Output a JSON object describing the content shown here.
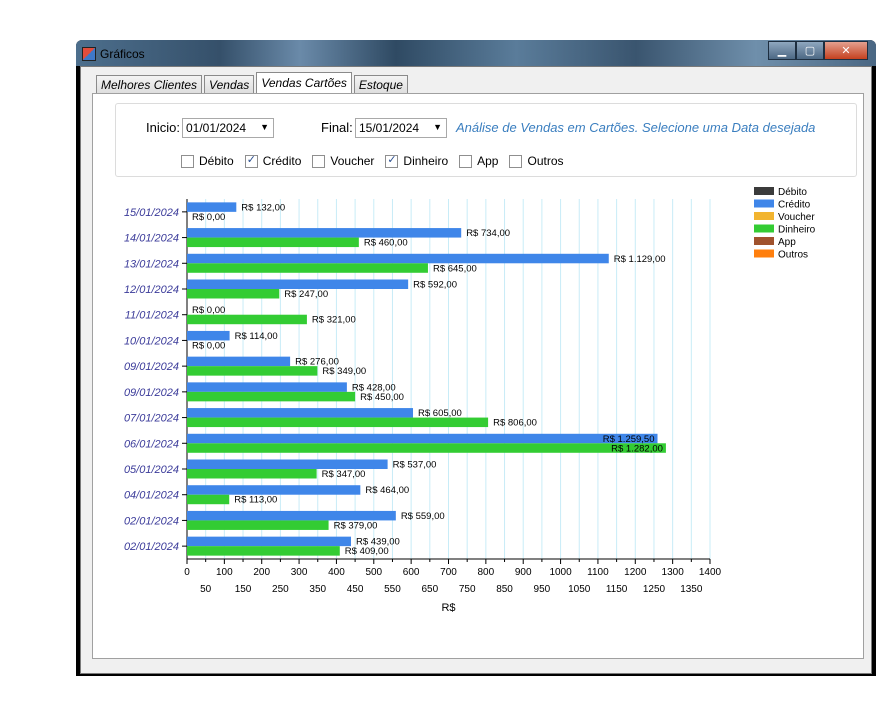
{
  "window": {
    "title": "Gráficos",
    "minimize": "▁",
    "maximize": "▢",
    "close": "✕"
  },
  "tabs": [
    {
      "label": "Melhores Clientes"
    },
    {
      "label": "Vendas"
    },
    {
      "label": "Vendas Cartões",
      "active": true
    },
    {
      "label": "Estoque"
    }
  ],
  "filters": {
    "inicio_label": "Inicio:",
    "inicio_value": "01/01/2024",
    "final_label": "Final:",
    "final_value": "15/01/2024",
    "hint": "Análise de Vendas em Cartões. Selecione uma Data desejada",
    "checkboxes": [
      {
        "label": "Débito",
        "checked": false
      },
      {
        "label": "Crédito",
        "checked": true
      },
      {
        "label": "Voucher",
        "checked": false
      },
      {
        "label": "Dinheiro",
        "checked": true
      },
      {
        "label": "App",
        "checked": false
      },
      {
        "label": "Outros",
        "checked": false
      }
    ]
  },
  "colors": {
    "Débito": "#3b3b3b",
    "Crédito": "#3f86e9",
    "Voucher": "#f2b42f",
    "Dinheiro": "#33cc33",
    "App": "#a0522d",
    "Outros": "#ff7f0e",
    "axis_label": "#3b3b9a",
    "grid": "#c8ecf7"
  },
  "chart_data": {
    "type": "bar",
    "orientation": "horizontal",
    "xlabel": "R$",
    "xlim": [
      0,
      1400
    ],
    "xticks_top": [
      "0",
      "100",
      "200",
      "300",
      "400",
      "500",
      "600",
      "700",
      "800",
      "900",
      "1000",
      "1100",
      "1200",
      "1300",
      "1400"
    ],
    "xticks_bottom": [
      "50",
      "150",
      "250",
      "350",
      "450",
      "550",
      "650",
      "750",
      "850",
      "950",
      "1050",
      "1150",
      "1250",
      "1350"
    ],
    "grid": true,
    "legend_position": "top-right",
    "legend": [
      "Débito",
      "Crédito",
      "Voucher",
      "Dinheiro",
      "App",
      "Outros"
    ],
    "categories": [
      "15/01/2024",
      "14/01/2024",
      "13/01/2024",
      "12/01/2024",
      "11/01/2024",
      "10/01/2024",
      "09/01/2024",
      "09/01/2024",
      "07/01/2024",
      "06/01/2024",
      "05/01/2024",
      "04/01/2024",
      "02/01/2024",
      "02/01/2024"
    ],
    "series": [
      {
        "name": "Crédito",
        "values": [
          132,
          734,
          1129,
          592,
          0,
          114,
          276,
          428,
          605,
          1259.5,
          537,
          464,
          559,
          439
        ],
        "labels": [
          "R$ 132,00",
          "R$ 734,00",
          "R$ 1.129,00",
          "R$ 592,00",
          "R$ 0,00",
          "R$ 114,00",
          "R$ 276,00",
          "R$ 428,00",
          "R$ 605,00",
          "R$ 1.259,50",
          "R$ 537,00",
          "R$ 464,00",
          "R$ 559,00",
          "R$ 439,00"
        ]
      },
      {
        "name": "Dinheiro",
        "values": [
          0,
          460,
          645,
          247,
          321,
          0,
          349,
          450,
          806,
          1282,
          347,
          113,
          379,
          409
        ],
        "labels": [
          "R$ 0,00",
          "R$ 460,00",
          "R$ 645,00",
          "R$ 247,00",
          "R$ 321,00",
          "R$ 0,00",
          "R$ 349,00",
          "R$ 450,00",
          "R$ 806,00",
          "R$ 1.282,00",
          "R$ 347,00",
          "R$ 113,00",
          "R$ 379,00",
          "R$ 409,00"
        ]
      }
    ]
  }
}
